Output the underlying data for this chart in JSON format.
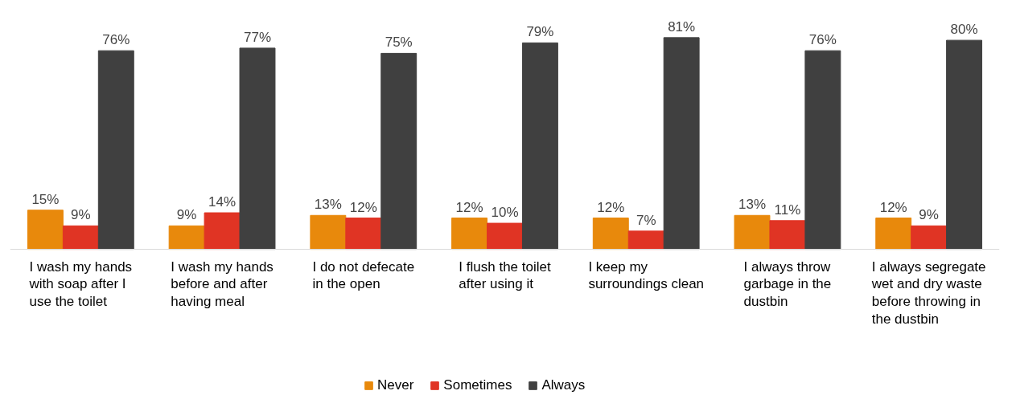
{
  "chart_data": {
    "type": "bar",
    "categories": [
      "I wash my hands with soap after I use the toilet",
      "I wash my hands before and after having meal",
      "I do not defecate in the open",
      "I flush the toilet after using it",
      "I keep my surroundings clean",
      "I always throw garbage in the dustbin",
      "I always segregate wet and dry waste before throwing in the dustbin"
    ],
    "series": [
      {
        "name": "Never",
        "color": "#e8890c",
        "values": [
          15,
          9,
          13,
          12,
          12,
          13,
          12
        ],
        "value_labels": [
          "15%",
          "9%",
          "13%",
          "12%",
          "12%",
          "13%",
          "12%"
        ]
      },
      {
        "name": "Sometimes",
        "color": "#e03424",
        "values": [
          9,
          14,
          12,
          10,
          7,
          11,
          9
        ],
        "value_labels": [
          "9%",
          "14%",
          "12%",
          "10%",
          "7%",
          "11%",
          "9%"
        ]
      },
      {
        "name": "Always",
        "color": "#404040",
        "values": [
          76,
          77,
          75,
          79,
          81,
          76,
          80
        ],
        "value_labels": [
          "76%",
          "77%",
          "75%",
          "79%",
          "81%",
          "76%",
          "80%"
        ]
      }
    ],
    "legend": "bottom"
  }
}
